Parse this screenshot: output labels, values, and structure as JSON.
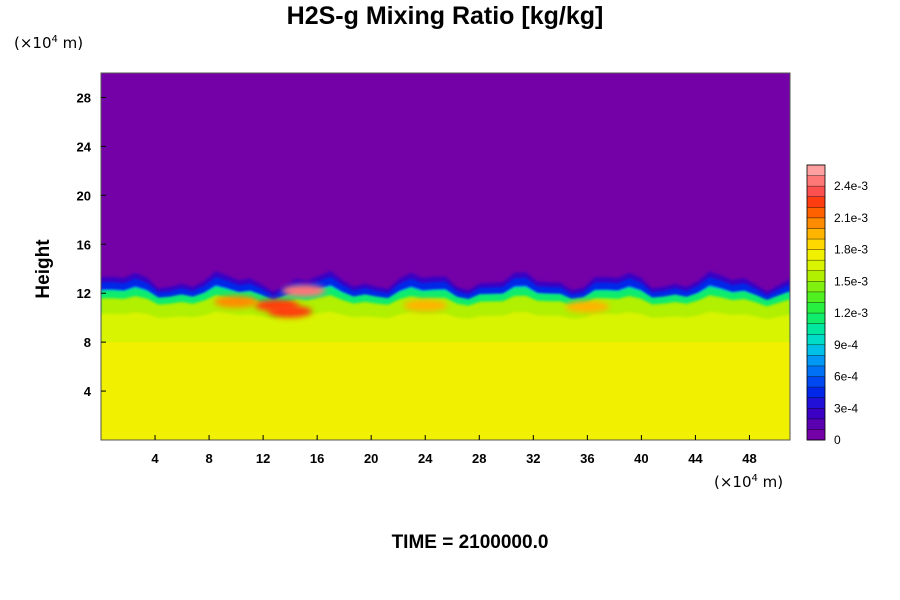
{
  "chart_data": {
    "type": "heatmap",
    "title": "H2S-g Mixing Ratio [kg/kg]",
    "ylabel": "Height",
    "x_unit": {
      "prefix": "(×10",
      "exp": "4",
      "suffix": " m)"
    },
    "y_unit": {
      "prefix": "(×10",
      "exp": "4",
      "suffix": " m)"
    },
    "xlim": [
      0,
      51
    ],
    "ylim": [
      0,
      30
    ],
    "x_ticks": [
      4,
      8,
      12,
      16,
      20,
      24,
      28,
      32,
      36,
      40,
      44,
      48
    ],
    "y_ticks": [
      4,
      8,
      12,
      16,
      20,
      24,
      28
    ],
    "x_tick_labels": [
      "4",
      "8",
      "12",
      "16",
      "20",
      "24",
      "28",
      "32",
      "36",
      "40",
      "44",
      "48"
    ],
    "y_tick_labels": [
      "4",
      "8",
      "12",
      "16",
      "20",
      "24",
      "28"
    ],
    "colorbar": {
      "min": 0,
      "max": 0.0026,
      "levels": 26,
      "tick_values": [
        0,
        0.0003,
        0.0006,
        0.0009,
        0.0012,
        0.0015,
        0.0018,
        0.0021,
        0.0024
      ],
      "tick_labels": [
        "0",
        "3e-4",
        "6e-4",
        "9e-4",
        "1.2e-3",
        "1.5e-3",
        "1.8e-3",
        "2.1e-3",
        "2.4e-3"
      ],
      "colors": [
        "#7400a8",
        "#5a00b0",
        "#3b00c4",
        "#2010d8",
        "#0026e8",
        "#0048f0",
        "#0070f4",
        "#0098f4",
        "#00c0e8",
        "#00dcc8",
        "#00e8a0",
        "#10ec6c",
        "#28f040",
        "#50f020",
        "#80f010",
        "#b0f000",
        "#d8f400",
        "#f0f000",
        "#ffd800",
        "#ffb400",
        "#ff8c00",
        "#ff6000",
        "#ff3c10",
        "#ff5050",
        "#ff7878",
        "#ffa0a0"
      ]
    },
    "layers": {
      "below_8": 0.0017,
      "from_8_to_10": 0.00165,
      "from_10_to_12": 0.0015,
      "interface_top_height": 13,
      "above_interface": 0
    },
    "hotspots": [
      {
        "x": 13,
        "y": 11,
        "value": 0.0022
      },
      {
        "x": 15,
        "y": 12.2,
        "value": 0.0024
      },
      {
        "x": 14,
        "y": 10.5,
        "value": 0.0022
      },
      {
        "x": 10,
        "y": 11.3,
        "value": 0.002
      },
      {
        "x": 24,
        "y": 11,
        "value": 0.0019
      },
      {
        "x": 36,
        "y": 10.9,
        "value": 0.0019
      }
    ],
    "time_label": "TIME = 2100000.0"
  }
}
